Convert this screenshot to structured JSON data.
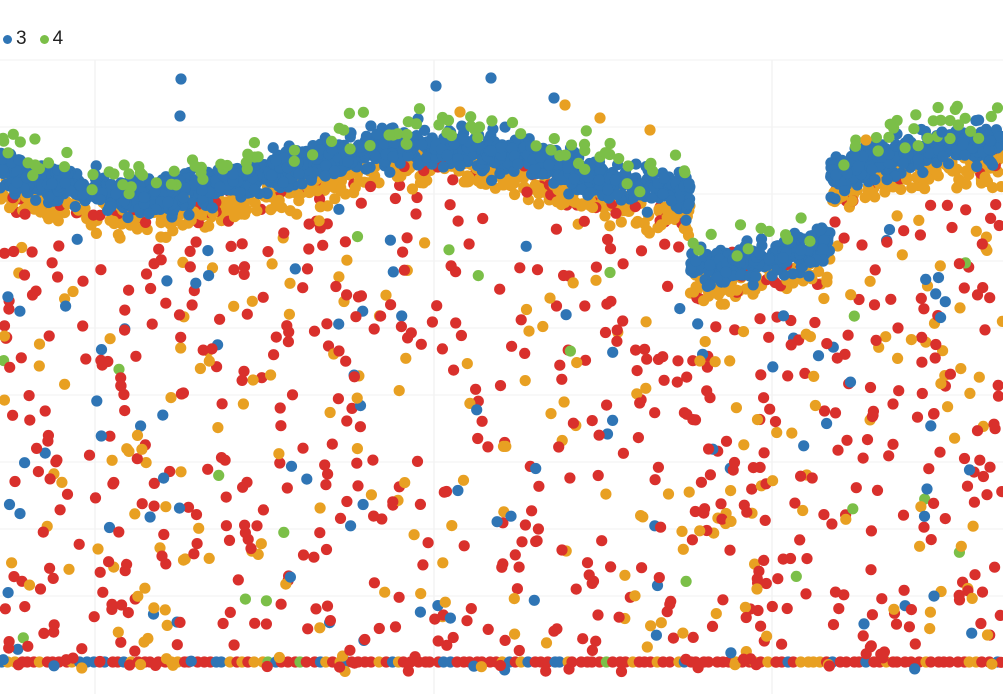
{
  "chart_data": {
    "type": "scatter",
    "legend": {
      "placement": "top-left",
      "entries": [
        {
          "label": "3",
          "color": "#2f75b5"
        },
        {
          "label": "4",
          "color": "#7bbf48"
        }
      ]
    },
    "grid": true,
    "series": [
      {
        "color": "#d9302c"
      },
      {
        "color": "#e8a022"
      },
      {
        "name": "3",
        "color": "#2f75b5"
      },
      {
        "name": "4",
        "color": "#7bbf48"
      }
    ]
  }
}
